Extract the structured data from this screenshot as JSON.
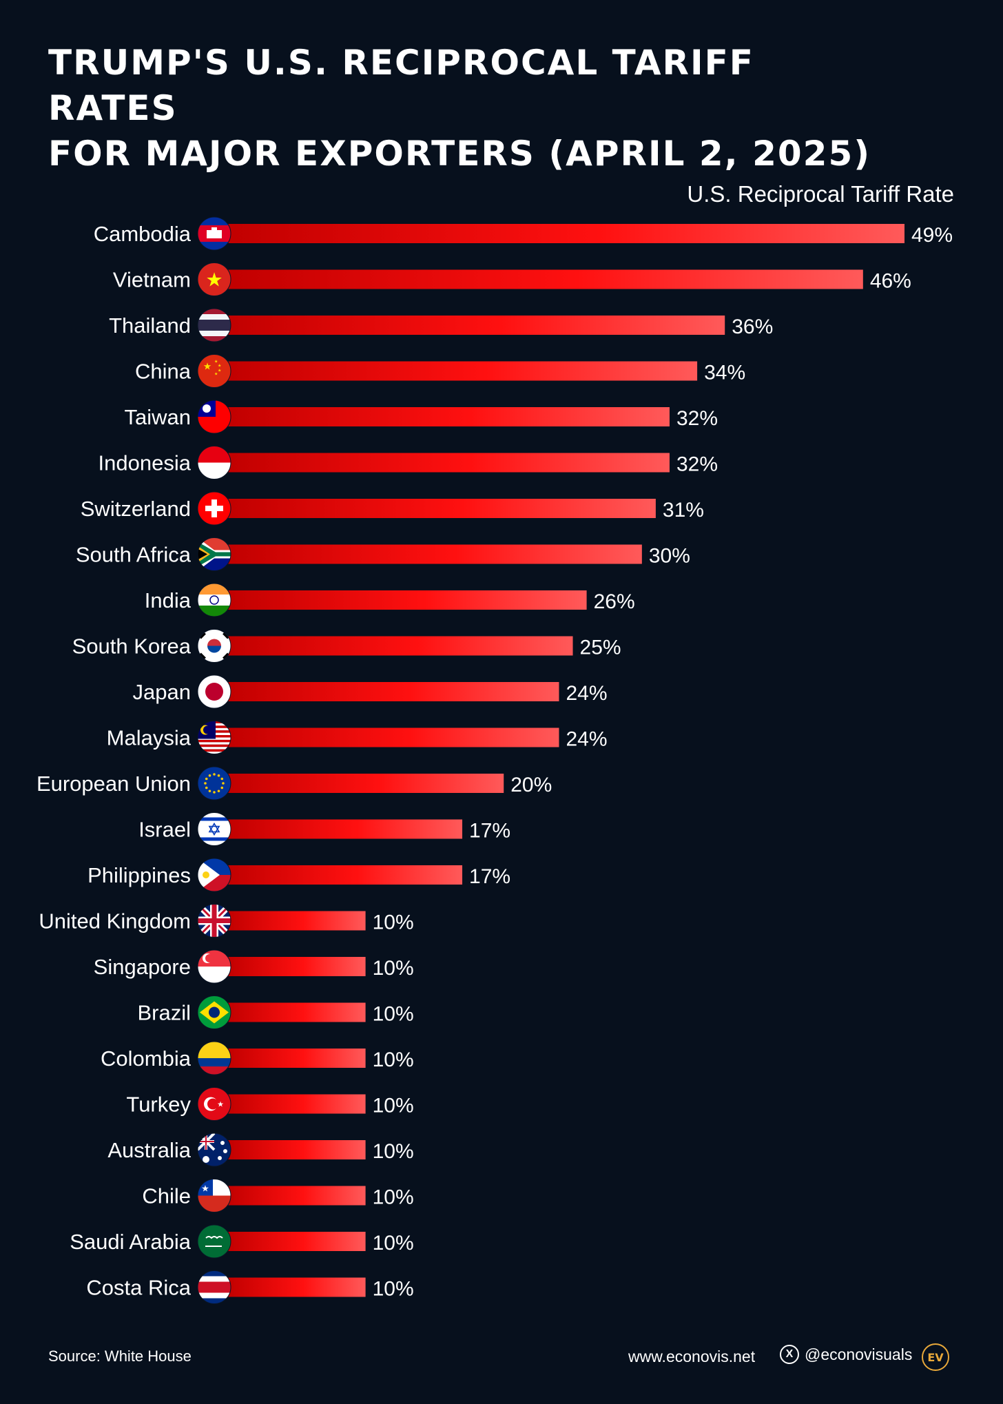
{
  "title": {
    "line1": "TRUMP'S U.S. RECIPROCAL TARIFF RATES",
    "line2": "FOR MAJOR EXPORTERS (APRIL 2, 2025)"
  },
  "footer": {
    "source": "Source: White House",
    "website": "www.econovis.net",
    "handle": "@econovisuals",
    "logo_text": "EV"
  },
  "colors": {
    "background": "#07101d",
    "bar_start": "#c10000",
    "bar_end": "#ff5a5a",
    "text": "#ffffff",
    "logo": "#e9a93a"
  },
  "chart_data": {
    "type": "bar",
    "orientation": "horizontal",
    "value_label": "U.S. Reciprocal Tariff Rate",
    "value_suffix": "%",
    "categories": [
      "Cambodia",
      "Vietnam",
      "Thailand",
      "China",
      "Taiwan",
      "Indonesia",
      "Switzerland",
      "South Africa",
      "India",
      "South Korea",
      "Japan",
      "Malaysia",
      "European Union",
      "Israel",
      "Philippines",
      "United Kingdom",
      "Singapore",
      "Brazil",
      "Colombia",
      "Turkey",
      "Australia",
      "Chile",
      "Saudi Arabia",
      "Costa Rica"
    ],
    "values": [
      49,
      46,
      36,
      34,
      32,
      32,
      31,
      30,
      26,
      25,
      24,
      24,
      20,
      17,
      17,
      10,
      10,
      10,
      10,
      10,
      10,
      10,
      10,
      10
    ],
    "flag_icons": [
      "cambodia-flag-icon",
      "vietnam-flag-icon",
      "thailand-flag-icon",
      "china-flag-icon",
      "taiwan-flag-icon",
      "indonesia-flag-icon",
      "switzerland-flag-icon",
      "south-africa-flag-icon",
      "india-flag-icon",
      "south-korea-flag-icon",
      "japan-flag-icon",
      "malaysia-flag-icon",
      "eu-flag-icon",
      "israel-flag-icon",
      "philippines-flag-icon",
      "uk-flag-icon",
      "singapore-flag-icon",
      "brazil-flag-icon",
      "colombia-flag-icon",
      "turkey-flag-icon",
      "australia-flag-icon",
      "chile-flag-icon",
      "saudi-arabia-flag-icon",
      "costa-rica-flag-icon"
    ],
    "xlim": [
      0,
      49
    ],
    "grid": false,
    "legend": "none"
  }
}
